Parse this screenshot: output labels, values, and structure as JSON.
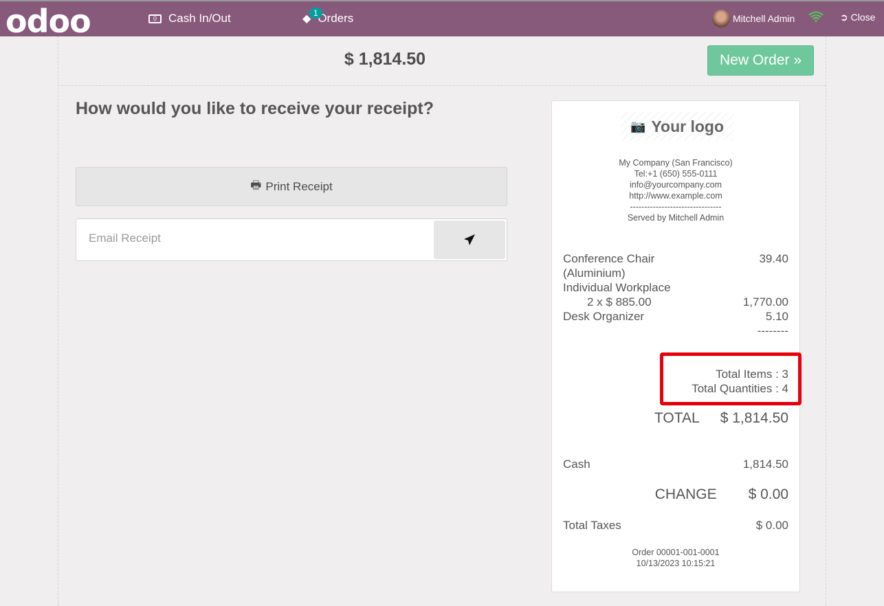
{
  "navbar": {
    "logo": "odoo",
    "cash_in_out": "Cash In/Out",
    "orders": "Orders",
    "orders_badge": "1",
    "user": "Mitchell Admin",
    "close": "Close",
    "color": "#875a7b"
  },
  "topbar": {
    "total": "$ 1,814.50",
    "new_order": "New Order »"
  },
  "left": {
    "question": "How would you like to receive your receipt?",
    "print_receipt": "Print Receipt",
    "email_placeholder": "Email Receipt"
  },
  "receipt": {
    "logo_text": "Your logo",
    "header": [
      "My Company (San Francisco)",
      "Tel:+1 (650) 555-0111",
      "info@yourcompany.com",
      "http://www.example.com",
      "--------------------------------",
      "Served by Mitchell Admin"
    ],
    "lines": [
      {
        "name": "Conference Chair",
        "price": "39.40"
      },
      {
        "name": "(Aluminium)",
        "price": ""
      },
      {
        "name": "Individual Workplace",
        "price": ""
      },
      {
        "name": "2 x $ 885.00",
        "price": "1,770.00"
      },
      {
        "name": "Desk Organizer",
        "price": "5.10"
      }
    ],
    "separator": "--------",
    "total_items": "Total Items : 3",
    "total_quantities": "Total Quantities : 4",
    "total_label": "TOTAL",
    "total_value": "$ 1,814.50",
    "payment_label": "Cash",
    "payment_value": "1,814.50",
    "change_label": "CHANGE",
    "change_value": "$ 0.00",
    "taxes_label": "Total Taxes",
    "taxes_value": "$ 0.00",
    "order_ref": "Order 00001-001-0001",
    "datetime": "10/13/2023 10:15:21"
  }
}
